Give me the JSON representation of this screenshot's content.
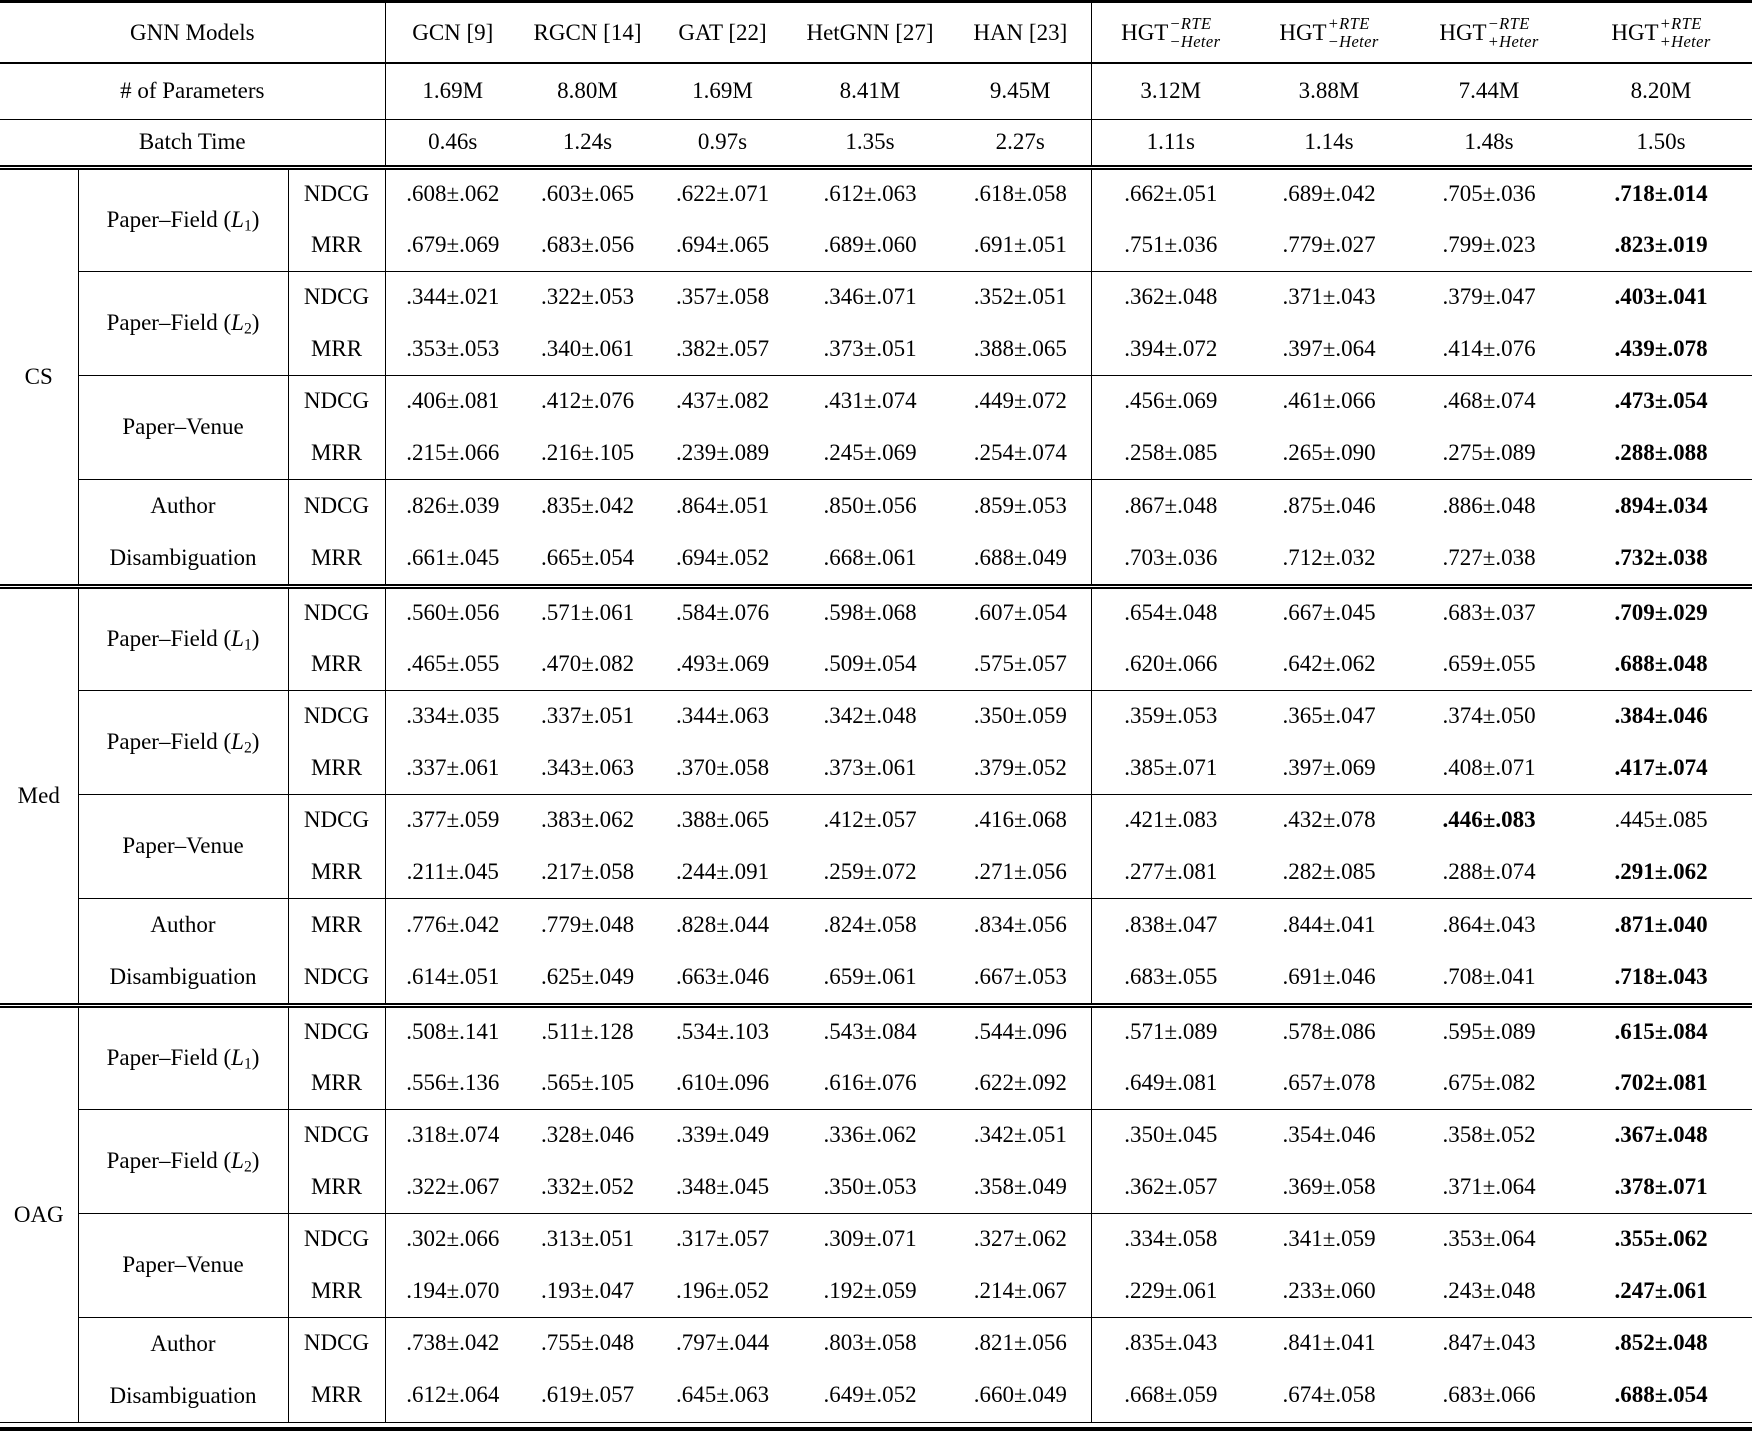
{
  "styles": {
    "text_color": "#000000",
    "background": "#ffffff",
    "rule_color": "#000000"
  },
  "header": {
    "models_label": "GNN Models",
    "columns": [
      {
        "label": "GCN [9]"
      },
      {
        "label": "RGCN [14]"
      },
      {
        "label": "GAT [22]"
      },
      {
        "label": "HetGNN [27]"
      },
      {
        "label": "HAN [23]"
      },
      {
        "base": "HGT",
        "sup": "−RTE",
        "sub": "−Heter"
      },
      {
        "base": "HGT",
        "sup": "+RTE",
        "sub": "−Heter"
      },
      {
        "base": "HGT",
        "sup": "−RTE",
        "sub": "+Heter"
      },
      {
        "base": "HGT",
        "sup": "+RTE",
        "sub": "+Heter"
      }
    ],
    "params_label": "# of Parameters",
    "params": [
      "1.69M",
      "8.80M",
      "1.69M",
      "8.41M",
      "9.45M",
      "3.12M",
      "3.88M",
      "7.44M",
      "8.20M"
    ],
    "batch_label": "Batch Time",
    "batch": [
      "0.46s",
      "1.24s",
      "0.97s",
      "1.35s",
      "2.27s",
      "1.11s",
      "1.14s",
      "1.48s",
      "1.50s"
    ]
  },
  "sections": [
    {
      "dataset": "CS",
      "tasks": [
        {
          "label_lines": [
            [
              {
                "t": "Paper–Field ("
              },
              {
                "t": "L",
                "italic": true
              },
              {
                "t": "1",
                "sub": true
              },
              {
                "t": ")"
              }
            ]
          ],
          "rows": [
            {
              "metric": "NDCG",
              "bold": 8,
              "values": [
                ".608±.062",
                ".603±.065",
                ".622±.071",
                ".612±.063",
                ".618±.058",
                ".662±.051",
                ".689±.042",
                ".705±.036",
                ".718±.014"
              ]
            },
            {
              "metric": "MRR",
              "bold": 8,
              "values": [
                ".679±.069",
                ".683±.056",
                ".694±.065",
                ".689±.060",
                ".691±.051",
                ".751±.036",
                ".779±.027",
                ".799±.023",
                ".823±.019"
              ]
            }
          ]
        },
        {
          "label_lines": [
            [
              {
                "t": "Paper–Field ("
              },
              {
                "t": "L",
                "italic": true
              },
              {
                "t": "2",
                "sub": true
              },
              {
                "t": ")"
              }
            ]
          ],
          "rows": [
            {
              "metric": "NDCG",
              "bold": 8,
              "values": [
                ".344±.021",
                ".322±.053",
                ".357±.058",
                ".346±.071",
                ".352±.051",
                ".362±.048",
                ".371±.043",
                ".379±.047",
                ".403±.041"
              ]
            },
            {
              "metric": "MRR",
              "bold": 8,
              "values": [
                ".353±.053",
                ".340±.061",
                ".382±.057",
                ".373±.051",
                ".388±.065",
                ".394±.072",
                ".397±.064",
                ".414±.076",
                ".439±.078"
              ]
            }
          ]
        },
        {
          "label_lines": [
            [
              {
                "t": "Paper–Venue"
              }
            ]
          ],
          "rows": [
            {
              "metric": "NDCG",
              "bold": 8,
              "values": [
                ".406±.081",
                ".412±.076",
                ".437±.082",
                ".431±.074",
                ".449±.072",
                ".456±.069",
                ".461±.066",
                ".468±.074",
                ".473±.054"
              ]
            },
            {
              "metric": "MRR",
              "bold": 8,
              "values": [
                ".215±.066",
                ".216±.105",
                ".239±.089",
                ".245±.069",
                ".254±.074",
                ".258±.085",
                ".265±.090",
                ".275±.089",
                ".288±.088"
              ]
            }
          ]
        },
        {
          "label_lines": [
            [
              {
                "t": "Author"
              }
            ],
            [
              {
                "t": "Disambiguation"
              }
            ]
          ],
          "rows": [
            {
              "metric": "NDCG",
              "bold": 8,
              "values": [
                ".826±.039",
                ".835±.042",
                ".864±.051",
                ".850±.056",
                ".859±.053",
                ".867±.048",
                ".875±.046",
                ".886±.048",
                ".894±.034"
              ]
            },
            {
              "metric": "MRR",
              "bold": 8,
              "values": [
                ".661±.045",
                ".665±.054",
                ".694±.052",
                ".668±.061",
                ".688±.049",
                ".703±.036",
                ".712±.032",
                ".727±.038",
                ".732±.038"
              ]
            }
          ]
        }
      ]
    },
    {
      "dataset": "Med",
      "tasks": [
        {
          "label_lines": [
            [
              {
                "t": "Paper–Field ("
              },
              {
                "t": "L",
                "italic": true
              },
              {
                "t": "1",
                "sub": true
              },
              {
                "t": ")"
              }
            ]
          ],
          "rows": [
            {
              "metric": "NDCG",
              "bold": 8,
              "values": [
                ".560±.056",
                ".571±.061",
                ".584±.076",
                ".598±.068",
                ".607±.054",
                ".654±.048",
                ".667±.045",
                ".683±.037",
                ".709±.029"
              ]
            },
            {
              "metric": "MRR",
              "bold": 8,
              "values": [
                ".465±.055",
                ".470±.082",
                ".493±.069",
                ".509±.054",
                ".575±.057",
                ".620±.066",
                ".642±.062",
                ".659±.055",
                ".688±.048"
              ]
            }
          ]
        },
        {
          "label_lines": [
            [
              {
                "t": "Paper–Field ("
              },
              {
                "t": "L",
                "italic": true
              },
              {
                "t": "2",
                "sub": true
              },
              {
                "t": ")"
              }
            ]
          ],
          "rows": [
            {
              "metric": "NDCG",
              "bold": 8,
              "values": [
                ".334±.035",
                ".337±.051",
                ".344±.063",
                ".342±.048",
                ".350±.059",
                ".359±.053",
                ".365±.047",
                ".374±.050",
                ".384±.046"
              ]
            },
            {
              "metric": "MRR",
              "bold": 8,
              "values": [
                ".337±.061",
                ".343±.063",
                ".370±.058",
                ".373±.061",
                ".379±.052",
                ".385±.071",
                ".397±.069",
                ".408±.071",
                ".417±.074"
              ]
            }
          ]
        },
        {
          "label_lines": [
            [
              {
                "t": "Paper–Venue"
              }
            ]
          ],
          "rows": [
            {
              "metric": "NDCG",
              "bold": 7,
              "values": [
                ".377±.059",
                ".383±.062",
                ".388±.065",
                ".412±.057",
                ".416±.068",
                ".421±.083",
                ".432±.078",
                ".446±.083",
                ".445±.085"
              ]
            },
            {
              "metric": "MRR",
              "bold": 8,
              "values": [
                ".211±.045",
                ".217±.058",
                ".244±.091",
                ".259±.072",
                ".271±.056",
                ".277±.081",
                ".282±.085",
                ".288±.074",
                ".291±.062"
              ]
            }
          ]
        },
        {
          "label_lines": [
            [
              {
                "t": "Author"
              }
            ],
            [
              {
                "t": "Disambiguation"
              }
            ]
          ],
          "rows": [
            {
              "metric": "MRR",
              "bold": 8,
              "values": [
                ".776±.042",
                ".779±.048",
                ".828±.044",
                ".824±.058",
                ".834±.056",
                ".838±.047",
                ".844±.041",
                ".864±.043",
                ".871±.040"
              ]
            },
            {
              "metric": "NDCG",
              "bold": 8,
              "values": [
                ".614±.051",
                ".625±.049",
                ".663±.046",
                ".659±.061",
                ".667±.053",
                ".683±.055",
                ".691±.046",
                ".708±.041",
                ".718±.043"
              ]
            }
          ]
        }
      ]
    },
    {
      "dataset": "OAG",
      "tasks": [
        {
          "label_lines": [
            [
              {
                "t": "Paper–Field ("
              },
              {
                "t": "L",
                "italic": true
              },
              {
                "t": "1",
                "sub": true
              },
              {
                "t": ")"
              }
            ]
          ],
          "rows": [
            {
              "metric": "NDCG",
              "bold": 8,
              "values": [
                ".508±.141",
                ".511±.128",
                ".534±.103",
                ".543±.084",
                ".544±.096",
                ".571±.089",
                ".578±.086",
                ".595±.089",
                ".615±.084"
              ]
            },
            {
              "metric": "MRR",
              "bold": 8,
              "values": [
                ".556±.136",
                ".565±.105",
                ".610±.096",
                ".616±.076",
                ".622±.092",
                ".649±.081",
                ".657±.078",
                ".675±.082",
                ".702±.081"
              ]
            }
          ]
        },
        {
          "label_lines": [
            [
              {
                "t": "Paper–Field ("
              },
              {
                "t": "L",
                "italic": true
              },
              {
                "t": "2",
                "sub": true
              },
              {
                "t": ")"
              }
            ]
          ],
          "rows": [
            {
              "metric": "NDCG",
              "bold": 8,
              "values": [
                ".318±.074",
                ".328±.046",
                ".339±.049",
                ".336±.062",
                ".342±.051",
                ".350±.045",
                ".354±.046",
                ".358±.052",
                ".367±.048"
              ]
            },
            {
              "metric": "MRR",
              "bold": 8,
              "values": [
                ".322±.067",
                ".332±.052",
                ".348±.045",
                ".350±.053",
                ".358±.049",
                ".362±.057",
                ".369±.058",
                ".371±.064",
                ".378±.071"
              ]
            }
          ]
        },
        {
          "label_lines": [
            [
              {
                "t": "Paper–Venue"
              }
            ]
          ],
          "rows": [
            {
              "metric": "NDCG",
              "bold": 8,
              "values": [
                ".302±.066",
                ".313±.051",
                ".317±.057",
                ".309±.071",
                ".327±.062",
                ".334±.058",
                ".341±.059",
                ".353±.064",
                ".355±.062"
              ]
            },
            {
              "metric": "MRR",
              "bold": 8,
              "values": [
                ".194±.070",
                ".193±.047",
                ".196±.052",
                ".192±.059",
                ".214±.067",
                ".229±.061",
                ".233±.060",
                ".243±.048",
                ".247±.061"
              ]
            }
          ]
        },
        {
          "label_lines": [
            [
              {
                "t": "Author"
              }
            ],
            [
              {
                "t": "Disambiguation"
              }
            ]
          ],
          "rows": [
            {
              "metric": "NDCG",
              "bold": 8,
              "values": [
                ".738±.042",
                ".755±.048",
                ".797±.044",
                ".803±.058",
                ".821±.056",
                ".835±.043",
                ".841±.041",
                ".847±.043",
                ".852±.048"
              ]
            },
            {
              "metric": "MRR",
              "bold": 8,
              "values": [
                ".612±.064",
                ".619±.057",
                ".645±.063",
                ".649±.052",
                ".660±.049",
                ".668±.059",
                ".674±.058",
                ".683±.066",
                ".688±.054"
              ]
            }
          ]
        }
      ]
    }
  ]
}
